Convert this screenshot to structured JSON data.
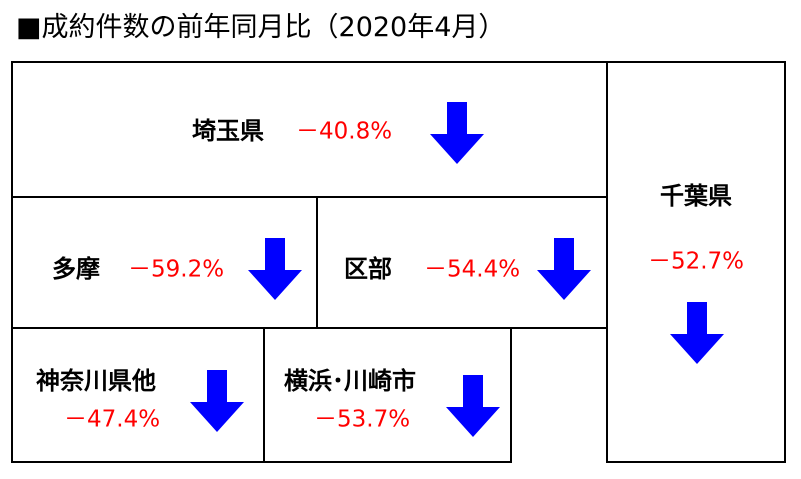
{
  "header": {
    "title": "■成約件数の前年同月比（2020年4月）"
  },
  "regions": [
    {
      "name": "埼玉県",
      "change": "－40.8%"
    },
    {
      "name": "千葉県",
      "change": "－52.7%"
    },
    {
      "name": "多摩",
      "change": "－59.2%"
    },
    {
      "name": "区部",
      "change": "－54.4%"
    },
    {
      "name": "神奈川県他",
      "change": "－47.4%"
    },
    {
      "name": "横浜･川崎市",
      "change": "－53.7%"
    }
  ]
}
